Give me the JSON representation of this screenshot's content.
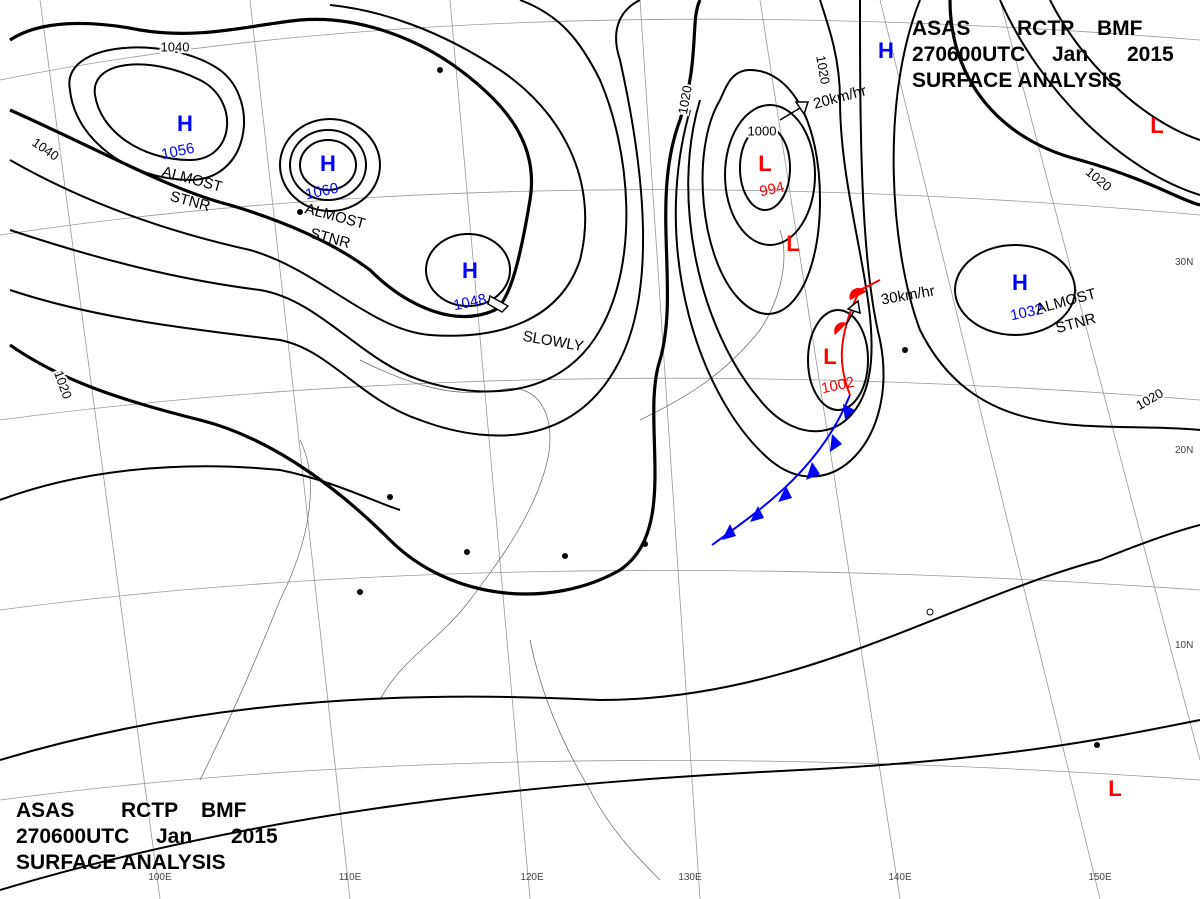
{
  "header_top": {
    "line1": [
      "ASAS",
      "RCTP",
      "BMF"
    ],
    "line2": [
      "270600UTC",
      "Jan",
      "2015"
    ],
    "line3": "SURFACE ANALYSIS"
  },
  "header_bottom": {
    "line1": [
      "ASAS",
      "RCTP",
      "BMF"
    ],
    "line2": [
      "270600UTC",
      "Jan",
      "2015"
    ],
    "line3": "SURFACE ANALYSIS"
  },
  "pressure_centers": [
    {
      "kind": "H",
      "value": 1056
    },
    {
      "kind": "H",
      "value": 1060
    },
    {
      "kind": "H",
      "value": 1048
    },
    {
      "kind": "H",
      "value": 1032
    },
    {
      "kind": "L",
      "value": 994
    },
    {
      "kind": "L",
      "value": 1002
    },
    {
      "kind": "H",
      "value": null
    },
    {
      "kind": "L",
      "value": null
    },
    {
      "kind": "L",
      "value": null
    },
    {
      "kind": "L",
      "value": null
    }
  ],
  "isobar_labels": [
    1040,
    1040,
    1020,
    1020,
    1000,
    1020,
    1020,
    1020
  ],
  "annotations": [
    "ALMOST",
    "STNR",
    "ALMOST",
    "STNR",
    "SLOWLY",
    "20km/hr",
    "30km/hr",
    "ALMOST",
    "STNR"
  ],
  "latitude_labels": [
    "30N",
    "20N",
    "10N"
  ],
  "longitude_labels": [
    "100E",
    "110E",
    "120E",
    "130E",
    "140E",
    "150E"
  ]
}
